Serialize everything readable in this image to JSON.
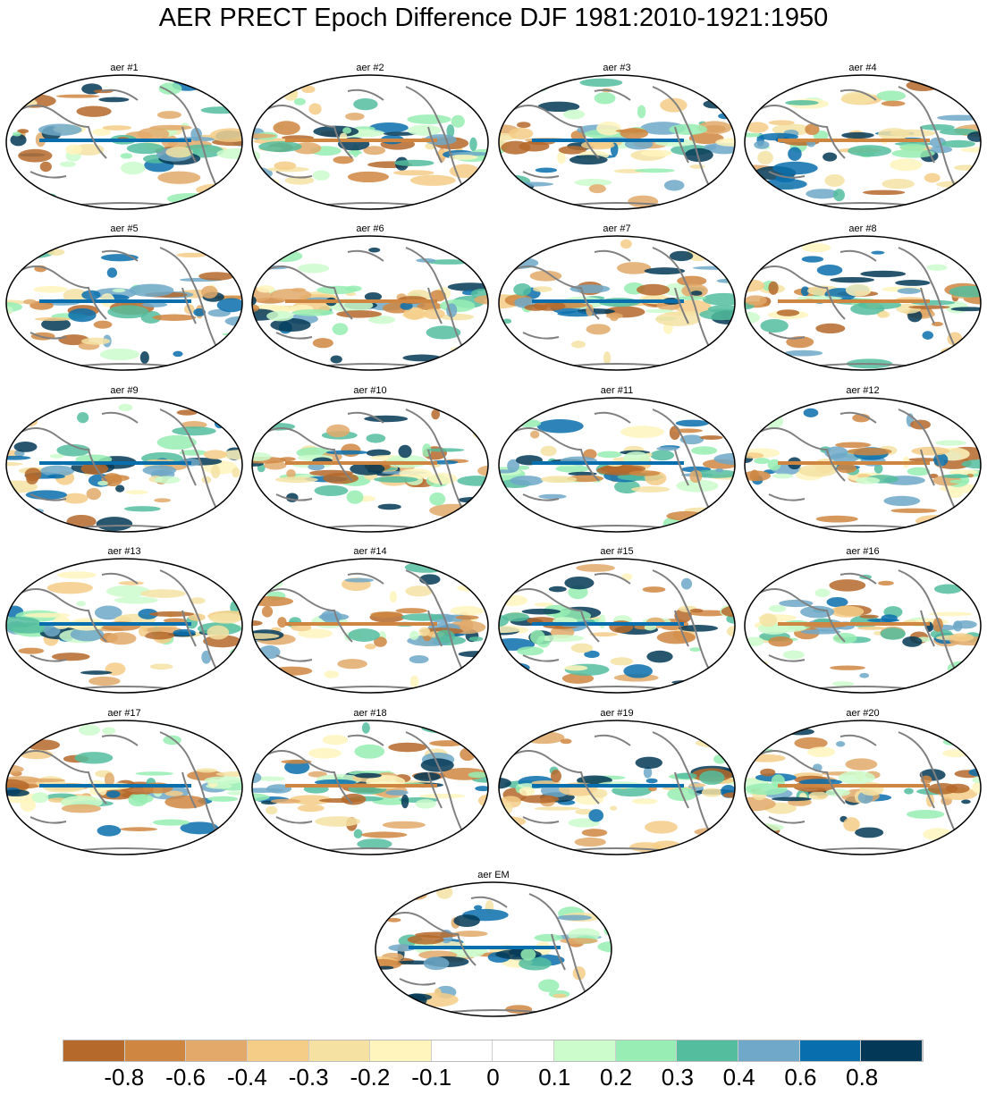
{
  "title": "AER PRECT Epoch Difference DJF 1981:2010-1921:1950",
  "panels": [
    "aer #1",
    "aer #2",
    "aer #3",
    "aer #4",
    "aer #5",
    "aer #6",
    "aer #7",
    "aer #8",
    "aer #9",
    "aer #10",
    "aer #11",
    "aer #12",
    "aer #13",
    "aer #14",
    "aer #15",
    "aer #16",
    "aer #17",
    "aer #18",
    "aer #19",
    "aer #20"
  ],
  "ensemble_mean_title": "aer EM",
  "colorbar": {
    "colors": [
      "#b5692a",
      "#cf8641",
      "#e2a96a",
      "#f5cd87",
      "#f5e2a3",
      "#fff5bd",
      "#ffffff",
      "#ffffff",
      "#ccfccc",
      "#97edb3",
      "#54bd9e",
      "#6fa8c8",
      "#096ead",
      "#033856"
    ],
    "labels": [
      "-0.8",
      "-0.6",
      "-0.4",
      "-0.3",
      "-0.2",
      "-0.1",
      "0",
      "0.1",
      "0.2",
      "0.3",
      "0.4",
      "0.6",
      "0.8"
    ]
  }
}
